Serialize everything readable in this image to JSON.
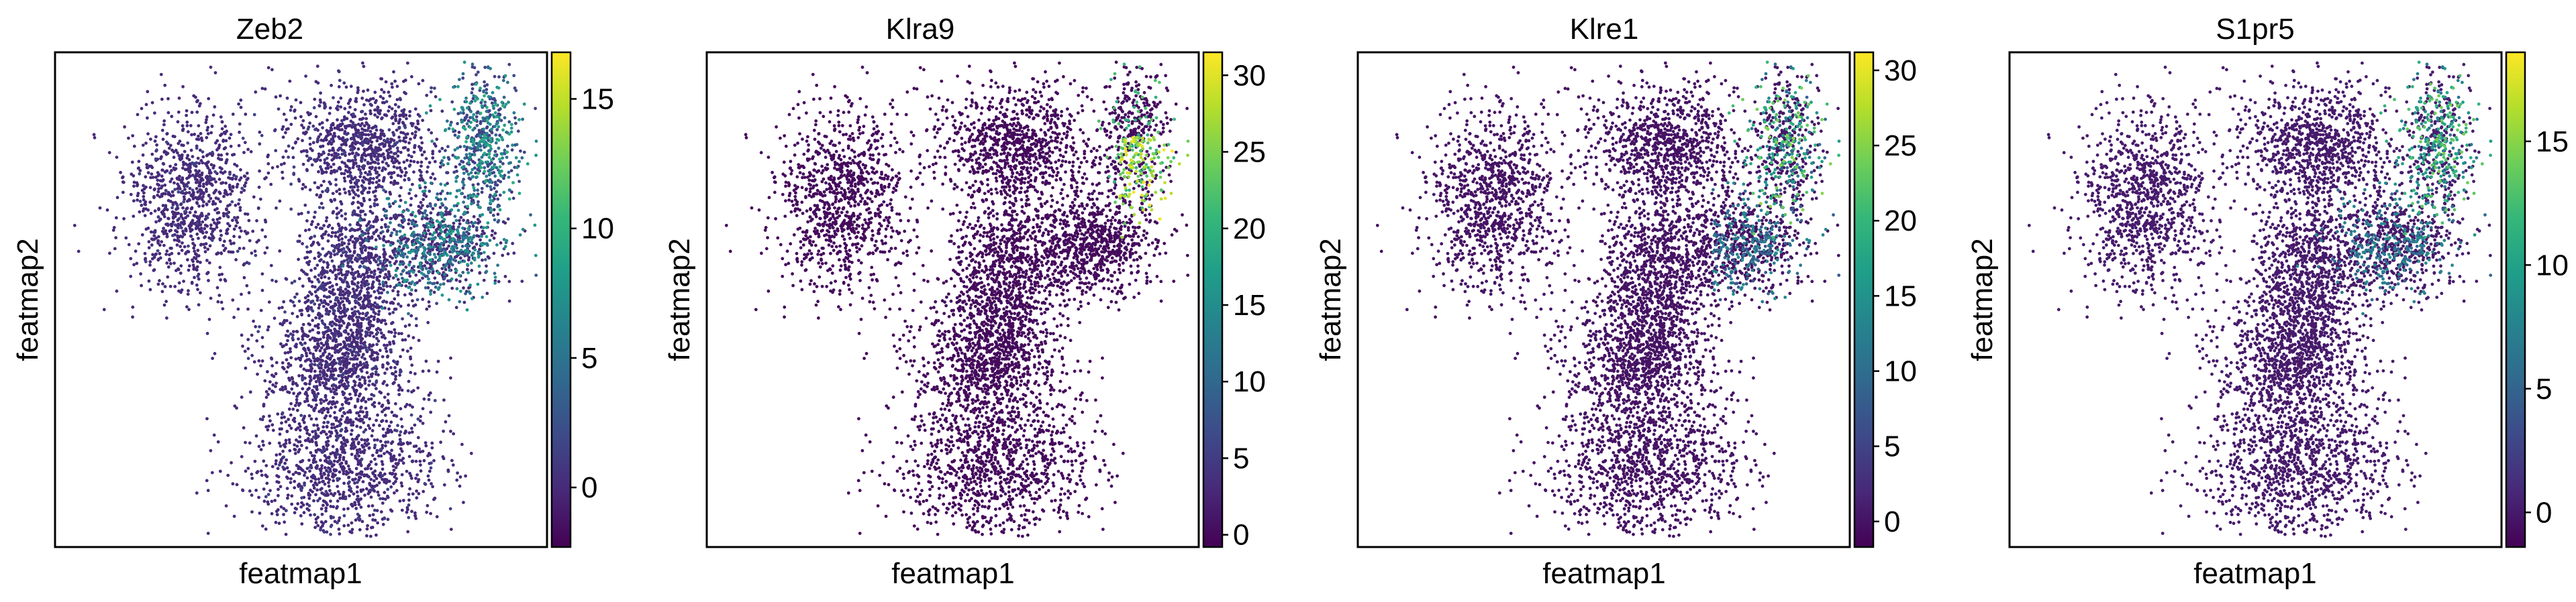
{
  "colormap": "viridis",
  "colormap_stops": [
    "#440154",
    "#482878",
    "#3e4989",
    "#31688e",
    "#26828e",
    "#1f9e89",
    "#35b779",
    "#6ece58",
    "#b5de2b",
    "#fde725"
  ],
  "chart_data": [
    {
      "type": "scatter",
      "title": "Zeb2",
      "xlabel": "featmap1",
      "ylabel": "featmap2",
      "colorbar": {
        "min": -2.3,
        "max": 16.8,
        "ticks": [
          0,
          5,
          10,
          15
        ]
      }
    },
    {
      "type": "scatter",
      "title": "Klra9",
      "xlabel": "featmap1",
      "ylabel": "featmap2",
      "colorbar": {
        "min": -0.8,
        "max": 31.5,
        "ticks": [
          0,
          5,
          10,
          15,
          20,
          25,
          30
        ]
      }
    },
    {
      "type": "scatter",
      "title": "Klre1",
      "xlabel": "featmap1",
      "ylabel": "featmap2",
      "colorbar": {
        "min": -1.7,
        "max": 31.2,
        "ticks": [
          0,
          5,
          10,
          15,
          20,
          25,
          30
        ]
      }
    },
    {
      "type": "scatter",
      "title": "S1pr5",
      "xlabel": "featmap1",
      "ylabel": "featmap2",
      "colorbar": {
        "min": -1.4,
        "max": 18.6,
        "ticks": [
          0,
          5,
          10,
          15
        ]
      }
    }
  ]
}
